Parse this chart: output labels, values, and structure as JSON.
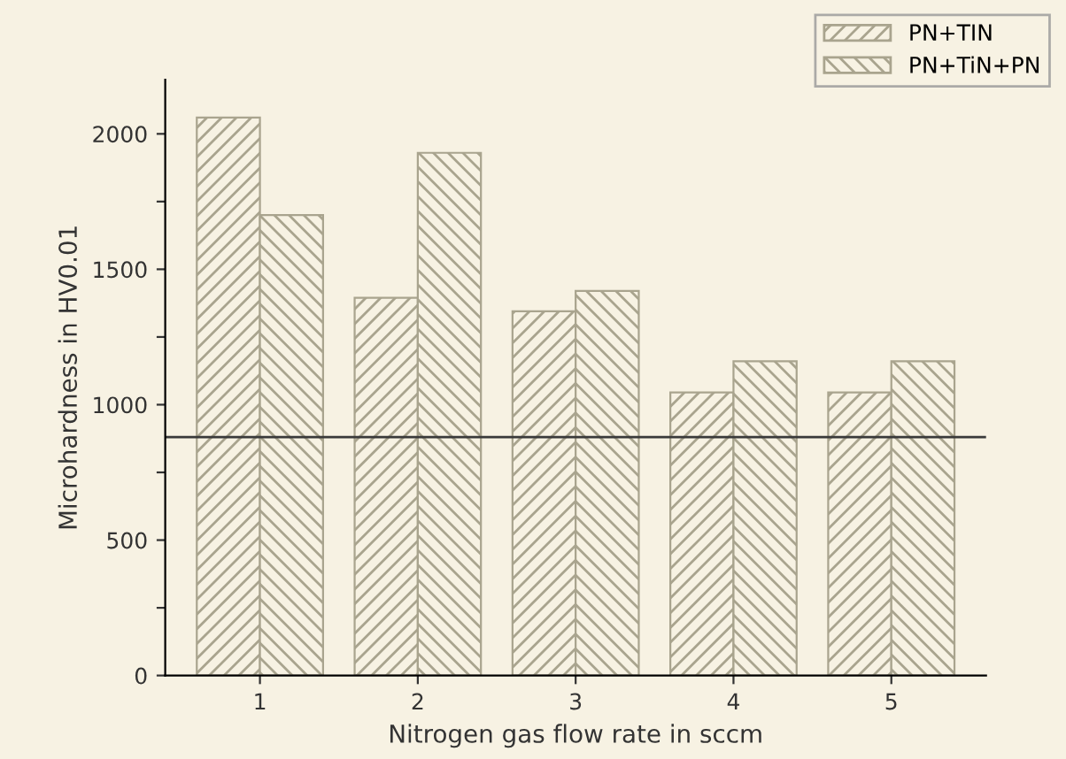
{
  "chart_data": {
    "type": "bar",
    "xlabel": "Nitrogen gas flow rate in sccm",
    "ylabel": "Microhardness in HV0.01",
    "categories": [
      "1",
      "2",
      "3",
      "4",
      "5"
    ],
    "series": [
      {
        "name": "PN+TIN",
        "color": "#a9a48e",
        "values": [
          2060,
          1395,
          1345,
          1045,
          1045
        ]
      },
      {
        "name": "PN+TiN+PN",
        "color": "#a9a48e",
        "values": [
          1700,
          1930,
          1420,
          1160,
          1160
        ]
      }
    ],
    "ylim": [
      0,
      2200
    ],
    "yticks": [
      0,
      {
        "value": 250,
        "label": null
      },
      500,
      {
        "value": 750,
        "label": null
      },
      1000,
      {
        "value": 1250,
        "label": null
      },
      1500,
      {
        "value": 1750,
        "label": null
      },
      2000
    ],
    "ref_lines": [
      {
        "axis": "y",
        "value": 880,
        "color": "#3a3a3a"
      }
    ],
    "legend": "top right",
    "grid": false
  }
}
